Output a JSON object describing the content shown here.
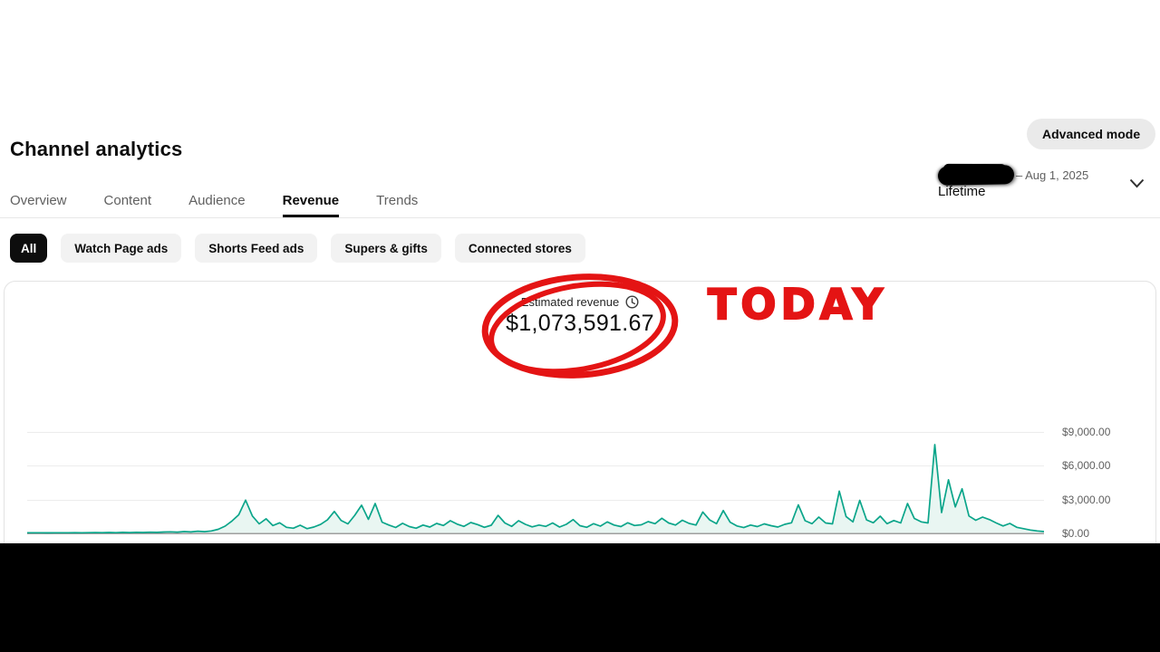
{
  "page_title": "Channel analytics",
  "header": {
    "advanced_mode_label": "Advanced mode"
  },
  "date_filter": {
    "start_redacted": true,
    "visible_range_text": "– Aug 1, 2025",
    "preset_label": "Lifetime"
  },
  "tabs": [
    {
      "label": "Overview",
      "active": false
    },
    {
      "label": "Content",
      "active": false
    },
    {
      "label": "Audience",
      "active": false
    },
    {
      "label": "Revenue",
      "active": true
    },
    {
      "label": "Trends",
      "active": false
    }
  ],
  "filter_chips": [
    {
      "label": "All",
      "active": true
    },
    {
      "label": "Watch Page ads",
      "active": false
    },
    {
      "label": "Shorts Feed ads",
      "active": false
    },
    {
      "label": "Supers & gifts",
      "active": false
    },
    {
      "label": "Connected stores",
      "active": false
    }
  ],
  "metric": {
    "label": "Estimated revenue",
    "icon": "clock-icon",
    "value": "$1,073,591.67"
  },
  "annotations": {
    "today_label": "TODAY",
    "marker_color": "#e41414",
    "circle_note": "hand-drawn red double circle around estimated revenue value"
  },
  "chart_data": {
    "type": "area",
    "title": "Estimated revenue (Lifetime, daily)",
    "total_value": "$1,073,591.67",
    "x_axis": {
      "start_label_obscured": true,
      "end": "Aug 1, 2025",
      "tick_labels_visible": false
    },
    "y_ticks": [
      "$9,000.00",
      "$6,000.00",
      "$3,000.00",
      "$0.00"
    ],
    "ylim": [
      0,
      10720
    ],
    "grid": true,
    "line_color": "#0ba58a",
    "fill_color": "#e9f6f2",
    "baseline_color": "#9f9f9f",
    "series": [
      {
        "name": "Estimated revenue",
        "values": [
          15,
          12,
          18,
          10,
          14,
          20,
          16,
          25,
          18,
          22,
          30,
          24,
          38,
          28,
          45,
          32,
          55,
          40,
          62,
          48,
          80,
          95,
          70,
          120,
          90,
          150,
          110,
          180,
          320,
          600,
          1050,
          1600,
          2900,
          1500,
          800,
          1250,
          650,
          900,
          500,
          420,
          680,
          380,
          520,
          750,
          1150,
          1900,
          1100,
          800,
          1550,
          2450,
          1200,
          2600,
          950,
          700,
          480,
          850,
          560,
          420,
          700,
          520,
          840,
          660,
          1080,
          780,
          580,
          920,
          740,
          500,
          680,
          1550,
          880,
          580,
          1080,
          760,
          540,
          700,
          580,
          880,
          520,
          760,
          1180,
          640,
          500,
          820,
          600,
          980,
          700,
          560,
          900,
          660,
          720,
          1000,
          820,
          1300,
          880,
          700,
          1120,
          840,
          700,
          1850,
          1150,
          820,
          1980,
          950,
          620,
          470,
          700,
          560,
          800,
          640,
          520,
          760,
          900,
          2480,
          1080,
          820,
          1400,
          880,
          800,
          3700,
          1450,
          980,
          2880,
          1150,
          900,
          1480,
          820,
          1100,
          880,
          2600,
          1280,
          980,
          880,
          7800,
          1800,
          4700,
          2300,
          3900,
          1500,
          1120,
          1400,
          1180,
          880,
          620,
          840,
          500,
          380,
          260,
          180,
          120
        ]
      }
    ]
  }
}
